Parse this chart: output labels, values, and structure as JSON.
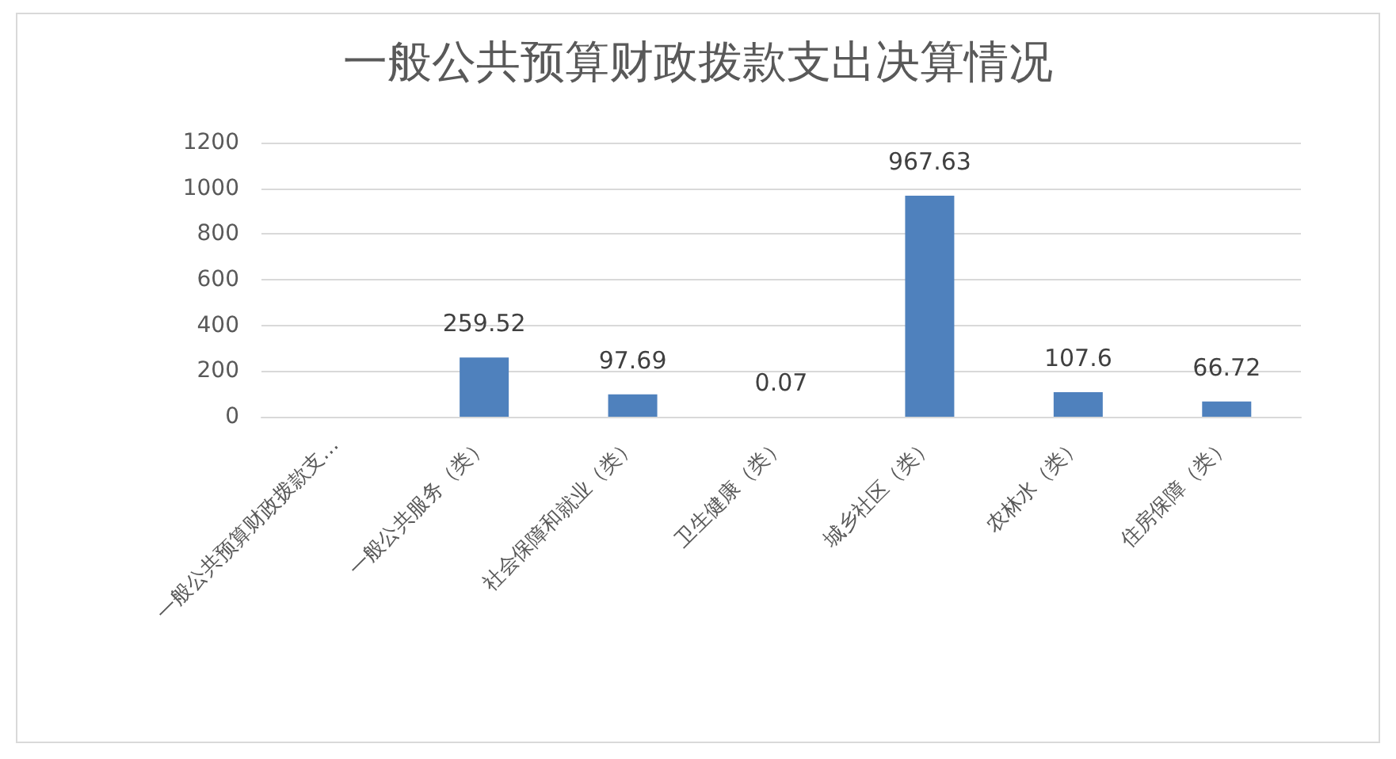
{
  "chart_data": {
    "type": "bar",
    "title": "一般公共预算财政拨款支出决算情况",
    "categories": [
      "一般公共预算财政拨款支…",
      "一般公共服务（类）",
      "社会保障和就业（类）",
      "卫生健康（类）",
      "城乡社区（类）",
      "农林水（类）",
      "住房保障（类）"
    ],
    "values": [
      null,
      259.52,
      97.69,
      0.07,
      967.63,
      107.6,
      66.72
    ],
    "color": "#4f81bd",
    "ylim": [
      0,
      1200
    ],
    "yticks": [
      0,
      200,
      400,
      600,
      800,
      1000,
      1200
    ],
    "grid": "y",
    "data_labels": true
  }
}
